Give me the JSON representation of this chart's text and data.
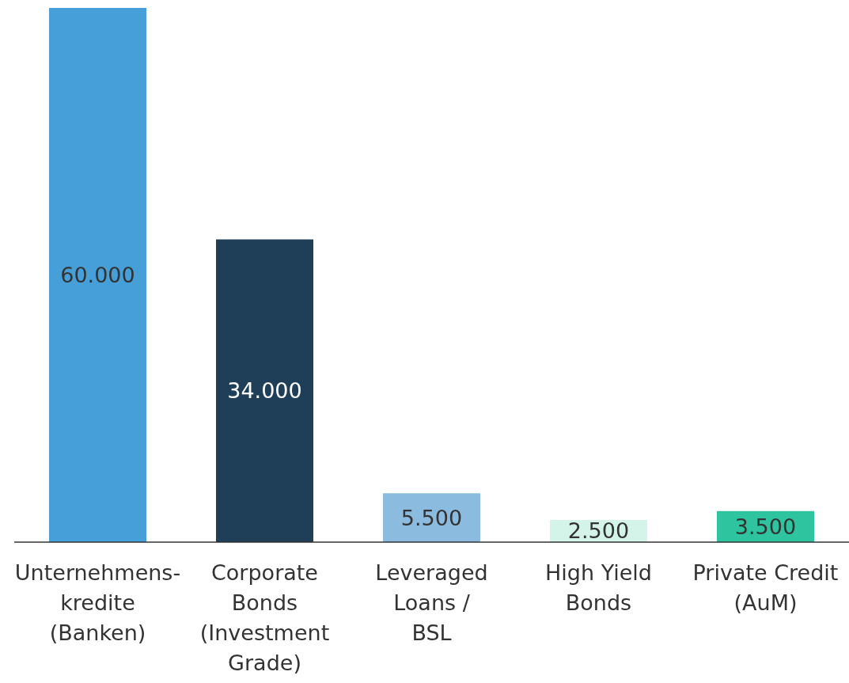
{
  "chart_data": {
    "type": "bar",
    "categories": [
      "Unternehmens-\nkredite\n(Banken)",
      "Corporate\nBonds\n(Investment\nGrade)",
      "Leveraged\nLoans /\nBSL",
      "High Yield\nBonds",
      "Private Credit\n(AuM)"
    ],
    "values": [
      60000,
      34000,
      5500,
      2500,
      3500
    ],
    "colors": [
      "#469fd9",
      "#1f3f58",
      "#8bbce0",
      "#d4f4ea",
      "#2ec4a0"
    ],
    "value_labels": [
      "60.000",
      "34.000",
      "5.500",
      "2.500",
      "3.500"
    ],
    "grid": false,
    "legend": false
  }
}
